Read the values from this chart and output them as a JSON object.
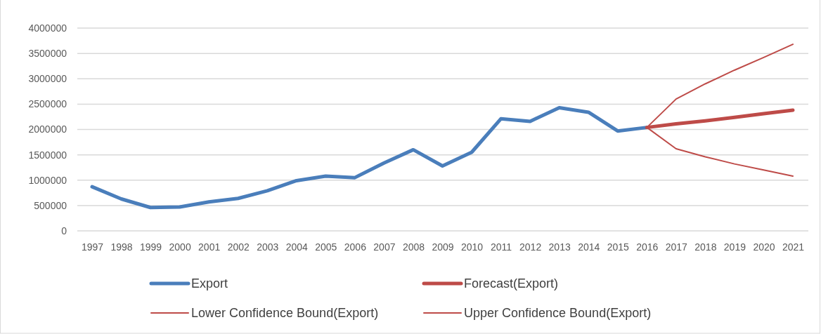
{
  "chart_data": {
    "type": "line",
    "categories": [
      "1997",
      "1998",
      "1999",
      "2000",
      "2001",
      "2002",
      "2003",
      "2004",
      "2005",
      "2006",
      "2007",
      "2008",
      "2009",
      "2010",
      "2011",
      "2012",
      "2013",
      "2014",
      "2015",
      "2016",
      "2017",
      "2018",
      "2019",
      "2020",
      "2021"
    ],
    "ylim": [
      0,
      4000000
    ],
    "yticks": [
      0,
      500000,
      1000000,
      1500000,
      2000000,
      2500000,
      3000000,
      3500000,
      4000000
    ],
    "grid": "y",
    "legend": "bottom",
    "marker": "none",
    "line_style": "solid",
    "series": [
      {
        "name": "Export",
        "color": "#4a7ebb",
        "values": [
          870000,
          630000,
          460000,
          470000,
          570000,
          640000,
          790000,
          990000,
          1080000,
          1050000,
          1340000,
          1600000,
          1280000,
          1550000,
          2210000,
          2160000,
          2430000,
          2340000,
          1970000,
          2040000,
          null,
          null,
          null,
          null,
          null
        ]
      },
      {
        "name": "Forecast(Export)",
        "color": "#be4b48",
        "values": [
          null,
          null,
          null,
          null,
          null,
          null,
          null,
          null,
          null,
          null,
          null,
          null,
          null,
          null,
          null,
          null,
          null,
          null,
          null,
          2040000,
          2110000,
          2170000,
          2240000,
          2310000,
          2380000
        ]
      },
      {
        "name": "Lower Confidence Bound(Export)",
        "color": "#be4b48",
        "values": [
          null,
          null,
          null,
          null,
          null,
          null,
          null,
          null,
          null,
          null,
          null,
          null,
          null,
          null,
          null,
          null,
          null,
          null,
          null,
          2040000,
          1620000,
          1460000,
          1320000,
          1200000,
          1080000
        ]
      },
      {
        "name": "Upper Confidence Bound(Export)",
        "color": "#be4b48",
        "values": [
          null,
          null,
          null,
          null,
          null,
          null,
          null,
          null,
          null,
          null,
          null,
          null,
          null,
          null,
          null,
          null,
          null,
          null,
          null,
          2040000,
          2600000,
          2900000,
          3170000,
          3420000,
          3680000
        ]
      }
    ]
  }
}
